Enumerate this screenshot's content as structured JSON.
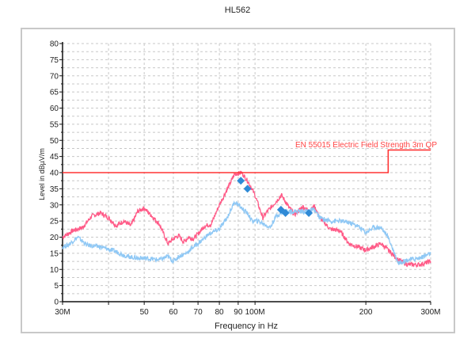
{
  "chart_data": {
    "type": "line",
    "title": "HL562",
    "xlabel": "Frequency in Hz",
    "ylabel": "Level in dBµV/m",
    "xscale": "log",
    "xlim": [
      30,
      300
    ],
    "ylim": [
      0,
      80
    ],
    "grid": true,
    "x_tick_values": [
      30,
      50,
      60,
      70,
      80,
      90,
      100,
      200,
      300
    ],
    "x_tick_labels": [
      "30M",
      "50",
      "60",
      "70",
      "80",
      "90",
      "100M",
      "200",
      "300M"
    ],
    "x_gridlines": [
      30,
      40,
      50,
      60,
      70,
      80,
      90,
      100,
      200,
      300
    ],
    "y_ticks": [
      0,
      5,
      10,
      15,
      20,
      25,
      30,
      35,
      40,
      45,
      50,
      55,
      60,
      65,
      70,
      75,
      80
    ],
    "limit_line": {
      "name": "EN 55015 Electric Field Strength 3m QP",
      "color": "#ff3333",
      "points": [
        [
          30,
          40
        ],
        [
          230,
          40
        ],
        [
          230,
          47
        ],
        [
          300,
          47
        ]
      ]
    },
    "series": [
      {
        "color": "#ff5a87",
        "points": [
          [
            30,
            20
          ],
          [
            32,
            22
          ],
          [
            34,
            23
          ],
          [
            36,
            26.5
          ],
          [
            38,
            27.5
          ],
          [
            40,
            26
          ],
          [
            42,
            23.5
          ],
          [
            44,
            25
          ],
          [
            46,
            23.5
          ],
          [
            48,
            28
          ],
          [
            50,
            29
          ],
          [
            52,
            27
          ],
          [
            55,
            24
          ],
          [
            58,
            18
          ],
          [
            60,
            19.5
          ],
          [
            62,
            20.5
          ],
          [
            64,
            18.5
          ],
          [
            66,
            20
          ],
          [
            68,
            19.5
          ],
          [
            70,
            21
          ],
          [
            73,
            23.5
          ],
          [
            76,
            24
          ],
          [
            80,
            30
          ],
          [
            85,
            36
          ],
          [
            88,
            39.5
          ],
          [
            92,
            40
          ],
          [
            96,
            37
          ],
          [
            100,
            33
          ],
          [
            105,
            26
          ],
          [
            108,
            28
          ],
          [
            112,
            30
          ],
          [
            118,
            33
          ],
          [
            124,
            29
          ],
          [
            128,
            27
          ],
          [
            135,
            29.5
          ],
          [
            140,
            28
          ],
          [
            145,
            29.5
          ],
          [
            150,
            26
          ],
          [
            160,
            22.5
          ],
          [
            170,
            22
          ],
          [
            180,
            18
          ],
          [
            190,
            17
          ],
          [
            200,
            16
          ],
          [
            210,
            17
          ],
          [
            220,
            18
          ],
          [
            230,
            16
          ],
          [
            245,
            13
          ],
          [
            260,
            11.5
          ],
          [
            280,
            11.5
          ],
          [
            300,
            12.5
          ]
        ]
      },
      {
        "color": "#8fc8f5",
        "points": [
          [
            30,
            17
          ],
          [
            31,
            17.5
          ],
          [
            33,
            20
          ],
          [
            35,
            17.5
          ],
          [
            38,
            17
          ],
          [
            42,
            15.5
          ],
          [
            45,
            14
          ],
          [
            48,
            13.5
          ],
          [
            50,
            13.5
          ],
          [
            55,
            13
          ],
          [
            58,
            14
          ],
          [
            60,
            12.5
          ],
          [
            62,
            14
          ],
          [
            65,
            15
          ],
          [
            68,
            17
          ],
          [
            70,
            18
          ],
          [
            75,
            21
          ],
          [
            80,
            22.5
          ],
          [
            84,
            26
          ],
          [
            88,
            31
          ],
          [
            92,
            29
          ],
          [
            96,
            27
          ],
          [
            98,
            25
          ],
          [
            102,
            25
          ],
          [
            106,
            24
          ],
          [
            110,
            23
          ],
          [
            114,
            26.5
          ],
          [
            120,
            28
          ],
          [
            128,
            28
          ],
          [
            135,
            28
          ],
          [
            145,
            28.5
          ],
          [
            150,
            26
          ],
          [
            160,
            25
          ],
          [
            170,
            25
          ],
          [
            180,
            24.5
          ],
          [
            190,
            23.5
          ],
          [
            200,
            21.5
          ],
          [
            210,
            23
          ],
          [
            220,
            23
          ],
          [
            230,
            20
          ],
          [
            245,
            12
          ],
          [
            260,
            13
          ],
          [
            280,
            13.5
          ],
          [
            300,
            15
          ]
        ]
      }
    ],
    "markers": {
      "color": "#2f8ad6",
      "shape": "diamond",
      "points": [
        [
          91.5,
          37.5
        ],
        [
          95.4,
          35
        ],
        [
          117.6,
          28.5
        ],
        [
          121,
          27.5
        ],
        [
          140,
          27.5
        ]
      ]
    }
  }
}
